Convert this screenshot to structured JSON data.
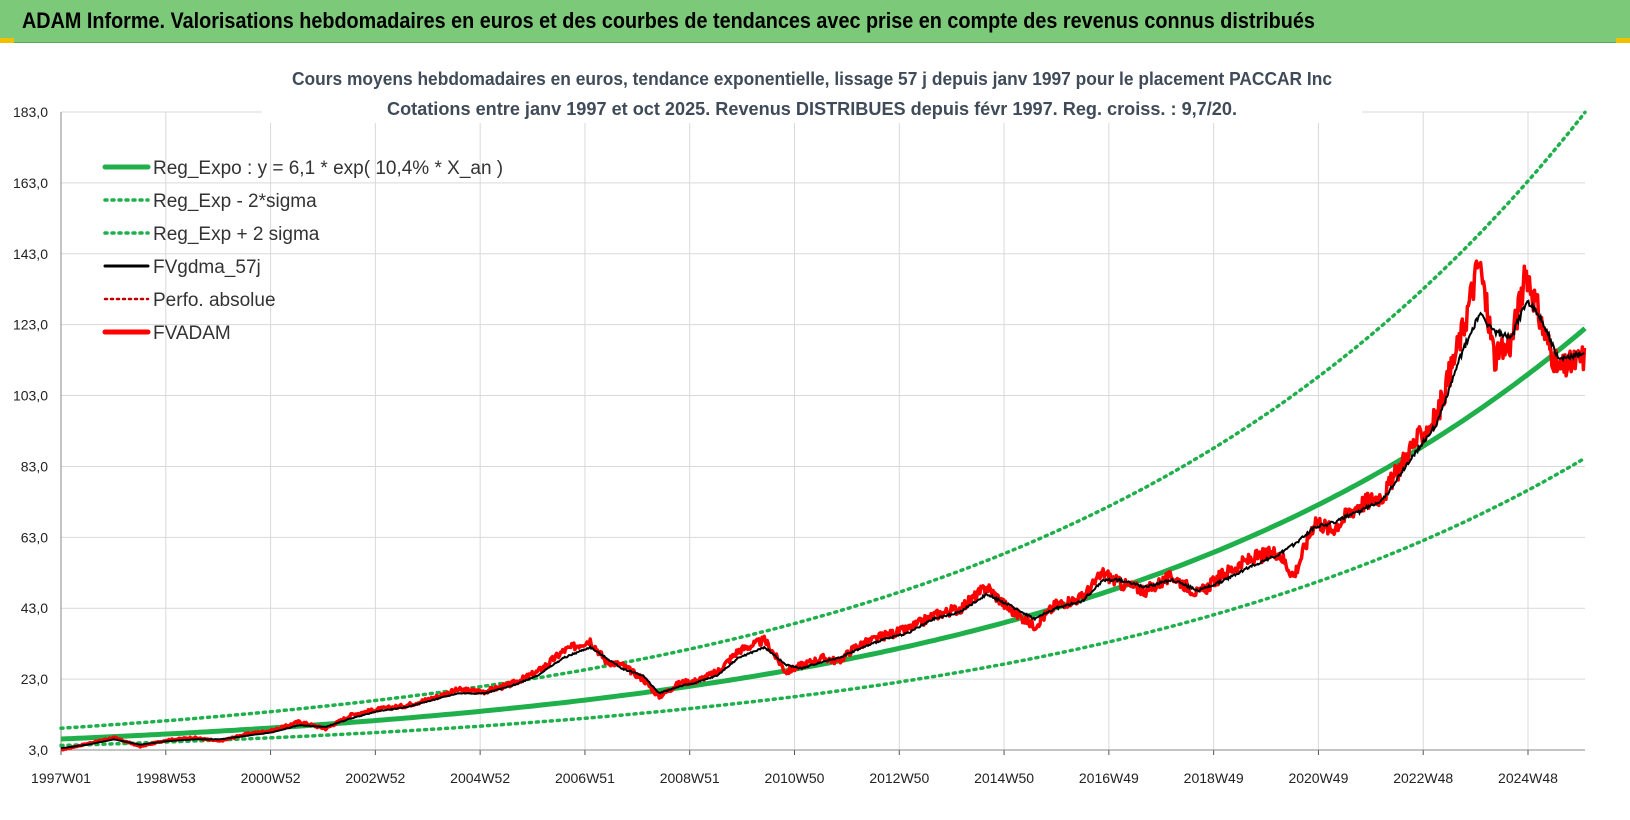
{
  "header": {
    "title": "ADAM Informe. Valorisations hebdomadaires en euros et des courbes de tendances avec prise en compte des revenus connus distribués"
  },
  "chart_data": {
    "type": "line",
    "title_line1": "Cours moyens hebdomadaires en euros, tendance exponentielle, lissage 57 j depuis janv 1997 pour le placement PACCAR Inc",
    "title_line2": "Cotations entre janv 1997 et oct 2025. Revenus DISTRIBUES depuis févr 1997. Reg. croiss. : 9,7/20.",
    "xlabel": "",
    "ylabel": "",
    "x_range": [
      1997.0,
      2025.8
    ],
    "ylim": [
      3.0,
      183.0
    ],
    "y_ticks": [
      "3,0",
      "23,0",
      "43,0",
      "63,0",
      "83,0",
      "103,0",
      "123,0",
      "143,0",
      "163,0",
      "183,0"
    ],
    "x_ticks": [
      "1997W01",
      "1998W53",
      "2000W52",
      "2002W52",
      "2004W52",
      "2006W51",
      "2008W51",
      "2010W50",
      "2012W50",
      "2014W50",
      "2016W49",
      "2018W49",
      "2020W49",
      "2022W48",
      "2024W48"
    ],
    "grid": true,
    "legend_position": "top-left",
    "colors": {
      "trend": "#1fb04b",
      "smoothed": "#000000",
      "price": "#ff0000",
      "perf": "#c00000",
      "grid": "#d9d9d9"
    },
    "regression": {
      "a": 6.1,
      "growth": 0.104,
      "start": 1997.0
    },
    "series": [
      {
        "name": "Reg_Expo : y = 6,1 * exp( 10,4% *  X_an )",
        "style": "solid-green",
        "x": [
          1997.0,
          2025.8
        ],
        "values": [
          6.1,
          121.0
        ]
      },
      {
        "name": "Reg_Exp - 2*sigma",
        "style": "dotted-green",
        "x": [
          1997.0,
          2025.8
        ],
        "values": [
          4.3,
          85.0
        ]
      },
      {
        "name": "Reg_Exp + 2 sigma",
        "style": "dotted-green",
        "x": [
          1997.0,
          2025.8
        ],
        "values": [
          9.0,
          184.0
        ]
      },
      {
        "name": "FVgdma_57j",
        "style": "solid-black",
        "x": [
          1997.0,
          1997.5,
          1998.0,
          1998.5,
          1999.0,
          1999.5,
          2000.0,
          2000.5,
          2001.0,
          2001.5,
          2002.0,
          2002.5,
          2003.0,
          2003.5,
          2004.0,
          2004.5,
          2005.0,
          2005.5,
          2006.0,
          2006.5,
          2007.0,
          2007.3,
          2007.6,
          2008.0,
          2008.3,
          2008.7,
          2009.0,
          2009.4,
          2009.8,
          2010.3,
          2010.7,
          2011.0,
          2011.4,
          2011.7,
          2012.0,
          2012.5,
          2013.0,
          2013.5,
          2014.0,
          2014.5,
          2014.9,
          2015.4,
          2015.8,
          2016.3,
          2016.7,
          2017.0,
          2017.5,
          2018.0,
          2018.5,
          2019.0,
          2019.5,
          2020.0,
          2020.3,
          2020.7,
          2021.0,
          2021.5,
          2022.0,
          2022.5,
          2023.0,
          2023.5,
          2023.8,
          2024.1,
          2024.4,
          2024.7,
          2025.0,
          2025.3,
          2025.8
        ],
        "values": [
          3.5,
          4.5,
          6.0,
          4.5,
          5.5,
          6.0,
          6.0,
          7.0,
          8.0,
          10.0,
          9.5,
          12.0,
          14.0,
          15.0,
          17.0,
          19.0,
          19.0,
          21.0,
          24.0,
          29.0,
          32.0,
          29.0,
          26.0,
          24.0,
          19.0,
          21.0,
          22.0,
          24.0,
          29.0,
          32.0,
          27.0,
          26.0,
          28.0,
          29.0,
          31.0,
          34.0,
          36.0,
          40.0,
          42.0,
          47.0,
          44.0,
          40.0,
          43.0,
          45.0,
          51.0,
          51.0,
          49.0,
          51.0,
          48.0,
          51.0,
          55.0,
          58.0,
          61.0,
          66.0,
          67.0,
          70.0,
          74.0,
          85.0,
          95.0,
          116.0,
          126.0,
          121.0,
          119.0,
          130.0,
          124.0,
          113.0,
          115.0
        ]
      },
      {
        "name": "Perfo. absolue",
        "style": "dotted-red",
        "x": [],
        "values": []
      },
      {
        "name": "FVADAM",
        "style": "solid-red",
        "x": [
          1997.0,
          1997.5,
          1998.0,
          1998.5,
          1999.0,
          1999.5,
          2000.0,
          2000.5,
          2001.0,
          2001.5,
          2002.0,
          2002.5,
          2003.0,
          2003.5,
          2004.0,
          2004.5,
          2005.0,
          2005.5,
          2006.0,
          2006.5,
          2007.0,
          2007.3,
          2007.6,
          2008.0,
          2008.3,
          2008.7,
          2009.0,
          2009.4,
          2009.8,
          2010.3,
          2010.7,
          2011.0,
          2011.4,
          2011.7,
          2012.0,
          2012.5,
          2013.0,
          2013.5,
          2014.0,
          2014.5,
          2014.9,
          2015.4,
          2015.8,
          2016.3,
          2016.7,
          2017.0,
          2017.5,
          2018.0,
          2018.5,
          2019.0,
          2019.5,
          2020.0,
          2020.3,
          2020.7,
          2021.0,
          2021.5,
          2022.0,
          2022.5,
          2023.0,
          2023.5,
          2023.8,
          2024.1,
          2024.4,
          2024.7,
          2025.0,
          2025.3,
          2025.8
        ],
        "values": [
          3.0,
          4.8,
          6.5,
          4.0,
          5.8,
          6.5,
          5.5,
          7.5,
          8.5,
          11.0,
          9.0,
          13.0,
          14.5,
          15.5,
          17.5,
          20.0,
          19.5,
          21.5,
          25.0,
          31.0,
          34.0,
          28.0,
          27.0,
          23.0,
          18.0,
          22.0,
          22.5,
          25.0,
          31.0,
          34.0,
          25.0,
          27.0,
          29.0,
          28.0,
          32.0,
          35.0,
          37.0,
          41.0,
          43.0,
          49.0,
          43.0,
          38.0,
          44.0,
          46.0,
          53.0,
          50.0,
          48.0,
          52.0,
          47.0,
          53.0,
          57.0,
          59.0,
          52.0,
          68.0,
          65.0,
          72.0,
          75.0,
          88.0,
          97.0,
          122.0,
          141.0,
          113.0,
          118.0,
          138.0,
          122.0,
          110.0,
          114.0
        ]
      }
    ]
  }
}
